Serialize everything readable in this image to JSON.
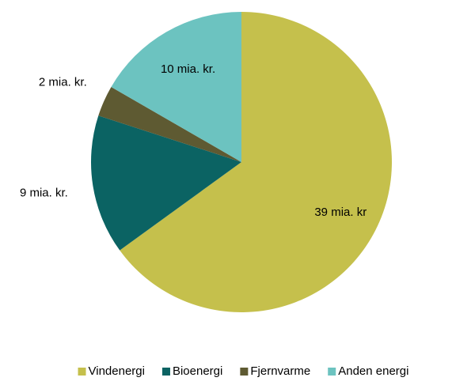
{
  "chart_data": {
    "type": "pie",
    "categories": [
      "Vindenergi",
      "Bioenergi",
      "Fjernvarme",
      "Anden energi"
    ],
    "values": [
      39,
      9,
      2,
      10
    ],
    "value_labels": [
      "39 mia. kr",
      "9 mia. kr.",
      "2 mia. kr.",
      "10 mia. kr."
    ],
    "colors": [
      "#c5c04c",
      "#0b6363",
      "#5e5a32",
      "#6cc3c0"
    ],
    "legend": "bottom"
  }
}
